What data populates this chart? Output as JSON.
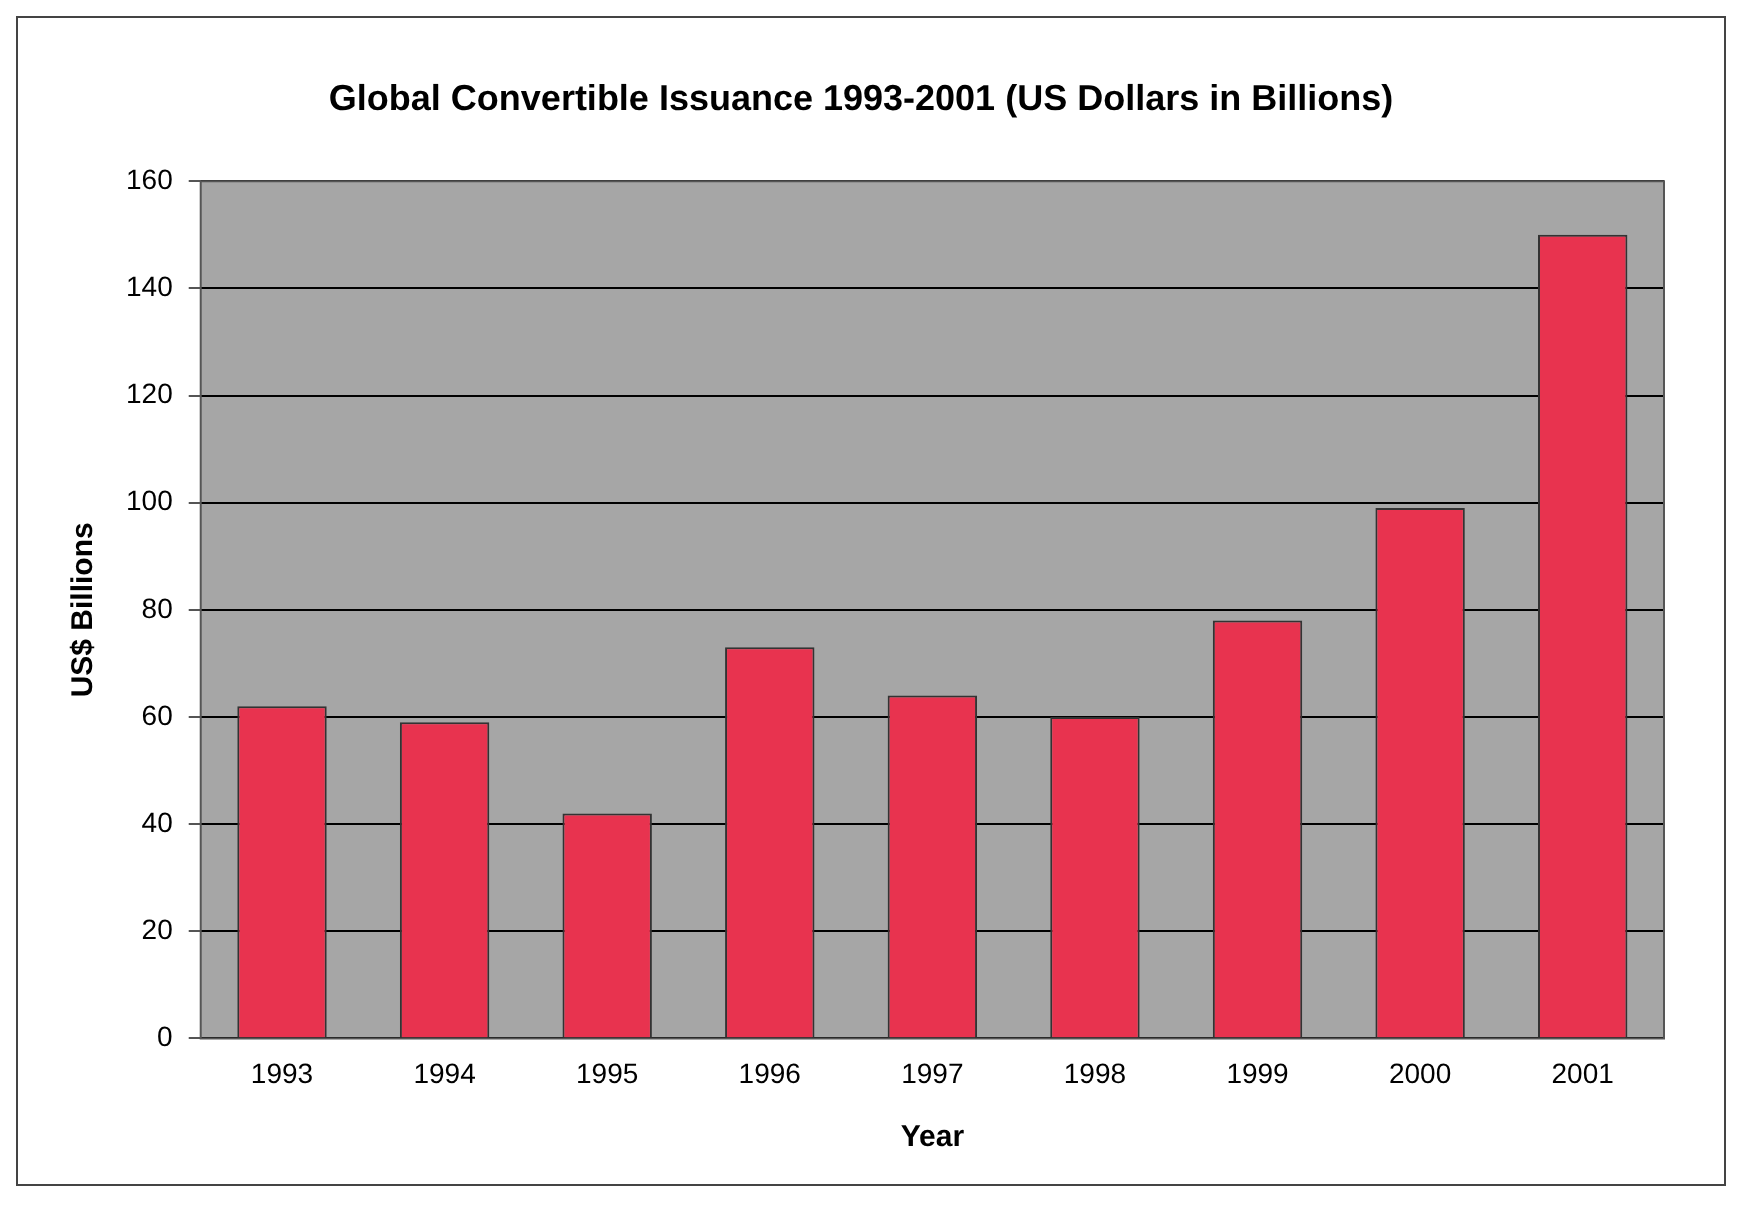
{
  "chart_data": {
    "type": "bar",
    "title": "Global Convertible Issuance 1993-2001 (US Dollars in Billions)",
    "xlabel": "Year",
    "ylabel": "US$ Billions",
    "categories": [
      "1993",
      "1994",
      "1995",
      "1996",
      "1997",
      "1998",
      "1999",
      "2000",
      "2001"
    ],
    "values": [
      62,
      59,
      42,
      73,
      64,
      60,
      78,
      99,
      150
    ],
    "color": "#e8334f",
    "ylim": [
      0,
      160
    ],
    "yticks": [
      0,
      20,
      40,
      60,
      80,
      100,
      120,
      140,
      160
    ],
    "grid": "y",
    "legend": false
  }
}
